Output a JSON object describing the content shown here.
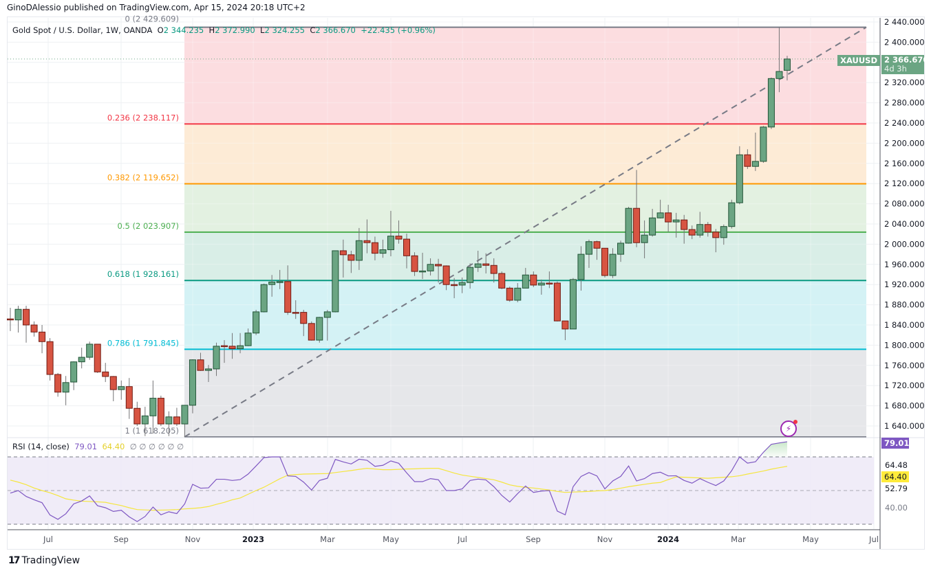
{
  "publisher_line": "GinoDAlessio published on TradingView.com, Apr 15, 2024 20:18 UTC+2",
  "legend": {
    "symbol": "Gold Spot / U.S. Dollar, 1W, OANDA",
    "o_label": "O",
    "o": "2 344.235",
    "h_label": "H",
    "h": "2 372.990",
    "l_label": "L",
    "l": "2 324.255",
    "c_label": "C",
    "c": "2 366.670",
    "change": "+22.435 (+0.96%)"
  },
  "colors": {
    "up": "#6ba583",
    "up_border": "#225437",
    "down": "#d75442",
    "down_border": "#6f1a12",
    "wick": "#737375",
    "rsi": "#7e57c2",
    "rsi_ma": "#f5e63d",
    "price_label": "#6ba583"
  },
  "price_axis": {
    "ticks": [
      "2 440.000",
      "2 400.000",
      "2 360.000",
      "2 320.000",
      "2 280.000",
      "2 240.000",
      "2 200.000",
      "2 160.000",
      "2 120.000",
      "2 080.000",
      "2 040.000",
      "2 000.000",
      "1 960.000",
      "1 920.000",
      "1 880.000",
      "1 840.000",
      "1 800.000",
      "1 760.000",
      "1 720.000",
      "1 680.000",
      "1 640.000"
    ],
    "range": [
      1640,
      2440
    ]
  },
  "time_axis": {
    "ticks": [
      "Jul",
      "Sep",
      "Nov",
      "2023",
      "Mar",
      "May",
      "Jul",
      "Sep",
      "Nov",
      "2024",
      "Mar",
      "May",
      "Jul"
    ]
  },
  "current_price": {
    "symbol": "XAUUSD",
    "value": "2 366.670",
    "countdown": "4d 3h",
    "price": 2366.67
  },
  "fib": {
    "levels": [
      {
        "ratio": 0,
        "label": "0 (2 429.609)",
        "price": 2429.609,
        "line": "#787b86",
        "fill": "#fcd7da"
      },
      {
        "ratio": 0.236,
        "label": "0.236 (2 238.117)",
        "price": 2238.117,
        "line": "#f23645",
        "fill": "#fde8cf"
      },
      {
        "ratio": 0.382,
        "label": "0.382 (2 119.652)",
        "price": 2119.652,
        "line": "#ff9800",
        "fill": "#deefdc"
      },
      {
        "ratio": 0.5,
        "label": "0.5 (2 023.907)",
        "price": 2023.907,
        "line": "#4caf50",
        "fill": "#d2ebe3"
      },
      {
        "ratio": 0.618,
        "label": "0.618 (1 928.161)",
        "price": 1928.161,
        "line": "#089981",
        "fill": "#ccf0f3"
      },
      {
        "ratio": 0.786,
        "label": "0.786 (1 791.845)",
        "price": 1791.845,
        "line": "#00bcd4",
        "fill": "#e2e3e6"
      },
      {
        "ratio": 1,
        "label": "1 (1 618.205)",
        "price": 1618.205,
        "line": "#787b86",
        "fill": ""
      }
    ]
  },
  "rsi": {
    "title": "RSI (14, close)",
    "value": "79.01",
    "ma_value": "64.40",
    "empty_values": "∅ ∅ ∅ ∅ ∅ ∅",
    "axis_labels": [
      "64.48",
      "52.79",
      "40.00"
    ],
    "levels": [
      70,
      50,
      30
    ]
  },
  "chart_data": {
    "type": "candlestick",
    "interval": "1W",
    "ohlc": [
      [
        1852,
        1874,
        1828,
        1851
      ],
      [
        1850,
        1878,
        1825,
        1871
      ],
      [
        1871,
        1878,
        1805,
        1840
      ],
      [
        1840,
        1847,
        1817,
        1826
      ],
      [
        1826,
        1840,
        1784,
        1807
      ],
      [
        1807,
        1814,
        1730,
        1742
      ],
      [
        1742,
        1745,
        1698,
        1707
      ],
      [
        1707,
        1739,
        1681,
        1726
      ],
      [
        1727,
        1768,
        1711,
        1767
      ],
      [
        1767,
        1795,
        1754,
        1776
      ],
      [
        1776,
        1807,
        1771,
        1802
      ],
      [
        1802,
        1802,
        1745,
        1747
      ],
      [
        1747,
        1765,
        1727,
        1738
      ],
      [
        1738,
        1739,
        1689,
        1712
      ],
      [
        1712,
        1730,
        1692,
        1718
      ],
      [
        1718,
        1735,
        1654,
        1675
      ],
      [
        1675,
        1688,
        1640,
        1644
      ],
      [
        1644,
        1678,
        1620,
        1660
      ],
      [
        1660,
        1730,
        1625,
        1695
      ],
      [
        1695,
        1700,
        1640,
        1644
      ],
      [
        1644,
        1669,
        1620,
        1658
      ],
      [
        1658,
        1676,
        1640,
        1644
      ],
      [
        1644,
        1681,
        1618.205,
        1681
      ],
      [
        1681,
        1772,
        1665,
        1771
      ],
      [
        1771,
        1785,
        1749,
        1750
      ],
      [
        1750,
        1761,
        1727,
        1753
      ],
      [
        1753,
        1805,
        1739,
        1798
      ],
      [
        1799,
        1810,
        1765,
        1798
      ],
      [
        1798,
        1824,
        1773,
        1793
      ],
      [
        1793,
        1824,
        1784,
        1799
      ],
      [
        1799,
        1833,
        1798,
        1824
      ],
      [
        1824,
        1870,
        1820,
        1866
      ],
      [
        1866,
        1922,
        1865,
        1920
      ],
      [
        1920,
        1939,
        1896,
        1925
      ],
      [
        1925,
        1949,
        1911,
        1926
      ],
      [
        1926,
        1958,
        1860,
        1865
      ],
      [
        1865,
        1889,
        1852,
        1865
      ],
      [
        1865,
        1870,
        1818,
        1843
      ],
      [
        1843,
        1847,
        1809,
        1810
      ],
      [
        1810,
        1856,
        1805,
        1855
      ],
      [
        1855,
        1870,
        1809,
        1866
      ],
      [
        1866,
        1987,
        1865,
        1987
      ],
      [
        1987,
        2009,
        1934,
        1979
      ],
      [
        1979,
        1987,
        1943,
        1968
      ],
      [
        1968,
        2032,
        1949,
        2007
      ],
      [
        2007,
        2049,
        1982,
        2003
      ],
      [
        2003,
        2015,
        1968,
        1982
      ],
      [
        1982,
        2009,
        1973,
        1989
      ],
      [
        1989,
        2066,
        1976,
        2016
      ],
      [
        2016,
        2047,
        2001,
        2010
      ],
      [
        2010,
        2021,
        1952,
        1977
      ],
      [
        1977,
        1984,
        1937,
        1946
      ],
      [
        1946,
        1983,
        1931,
        1947
      ],
      [
        1947,
        1972,
        1938,
        1960
      ],
      [
        1960,
        1971,
        1924,
        1957
      ],
      [
        1957,
        1958,
        1909,
        1920
      ],
      [
        1920,
        1933,
        1893,
        1919
      ],
      [
        1919,
        1934,
        1903,
        1924
      ],
      [
        1924,
        1962,
        1912,
        1954
      ],
      [
        1954,
        1987,
        1945,
        1961
      ],
      [
        1961,
        1982,
        1942,
        1958
      ],
      [
        1958,
        1972,
        1924,
        1942
      ],
      [
        1942,
        1946,
        1911,
        1913
      ],
      [
        1913,
        1916,
        1886,
        1889
      ],
      [
        1889,
        1923,
        1885,
        1913
      ],
      [
        1913,
        1953,
        1913,
        1939
      ],
      [
        1939,
        1946,
        1915,
        1919
      ],
      [
        1919,
        1930,
        1900,
        1923
      ],
      [
        1923,
        1946,
        1913,
        1923
      ],
      [
        1923,
        1926,
        1847,
        1848
      ],
      [
        1848,
        1848,
        1810,
        1832
      ],
      [
        1832,
        1933,
        1832,
        1930
      ],
      [
        1930,
        1996,
        1908,
        1980
      ],
      [
        1980,
        2009,
        1953,
        2005
      ],
      [
        2005,
        2007,
        1969,
        1992
      ],
      [
        1992,
        1992,
        1934,
        1938
      ],
      [
        1938,
        1992,
        1933,
        1980
      ],
      [
        1980,
        2007,
        1965,
        2002
      ],
      [
        2002,
        2074,
        2001,
        2071
      ],
      [
        2071,
        2147,
        1994,
        2003
      ],
      [
        2003,
        2047,
        1972,
        2018
      ],
      [
        2018,
        2070,
        2015,
        2052
      ],
      [
        2052,
        2088,
        2051,
        2062
      ],
      [
        2062,
        2078,
        2024,
        2044
      ],
      [
        2044,
        2062,
        2013,
        2048
      ],
      [
        2048,
        2058,
        2001,
        2029
      ],
      [
        2029,
        2037,
        2010,
        2018
      ],
      [
        2018,
        2064,
        2013,
        2039
      ],
      [
        2039,
        2044,
        2015,
        2024
      ],
      [
        2024,
        2030,
        1984,
        2013
      ],
      [
        2013,
        2039,
        1999,
        2035
      ],
      [
        2035,
        2088,
        2031,
        2082
      ],
      [
        2082,
        2194,
        2079,
        2177
      ],
      [
        2177,
        2188,
        2149,
        2154
      ],
      [
        2154,
        2221,
        2145,
        2164
      ],
      [
        2164,
        2234,
        2161,
        2232
      ],
      [
        2232,
        2330,
        2228,
        2328
      ],
      [
        2328,
        2429.609,
        2301,
        2342
      ],
      [
        2344.235,
        2372.99,
        2324.255,
        2366.67
      ]
    ],
    "rsi": [
      48.5,
      50.0,
      46.5,
      44.5,
      42.8,
      35.5,
      32.9,
      36.2,
      42.1,
      43.8,
      46.8,
      41.0,
      39.8,
      37.6,
      38.3,
      34.4,
      31.6,
      34.6,
      40.2,
      35.6,
      37.4,
      36.3,
      42.1,
      53.7,
      51.4,
      51.6,
      56.7,
      56.7,
      56.0,
      56.5,
      59.8,
      64.6,
      69.6,
      70.0,
      70.0,
      58.7,
      58.4,
      55.0,
      50.3,
      56.0,
      57.3,
      68.5,
      67.0,
      65.8,
      68.6,
      68.0,
      64.4,
      65.0,
      67.6,
      66.2,
      60.5,
      55.3,
      55.3,
      57.1,
      56.4,
      50.0,
      50.0,
      51.0,
      56.0,
      56.8,
      56.3,
      52.3,
      47.1,
      43.2,
      48.2,
      52.7,
      48.9,
      49.7,
      50.0,
      37.8,
      35.6,
      52.3,
      58.4,
      60.7,
      58.7,
      51.0,
      55.7,
      58.4,
      64.6,
      55.7,
      57.1,
      60.1,
      60.9,
      58.7,
      58.8,
      56.0,
      54.4,
      57.1,
      54.9,
      53.0,
      55.7,
      61.8,
      70.0,
      66.3,
      67.1,
      72.7,
      77.5,
      78.3,
      79.01
    ],
    "rsi_ma": [
      56.2,
      55.0,
      53.5,
      51.5,
      50.0,
      48.7,
      47.0,
      45.1,
      44.3,
      43.7,
      43.5,
      43.3,
      43.0,
      42.0,
      41.1,
      39.8,
      38.7,
      38.5,
      38.3,
      38.4,
      38.5,
      38.7,
      39.1,
      39.4,
      39.8,
      40.5,
      41.8,
      43.0,
      44.5,
      45.6,
      47.8,
      50.0,
      52.0,
      54.5,
      57.0,
      59.1,
      59.5,
      59.8,
      59.9,
      60.0,
      60.1,
      60.7,
      61.3,
      61.9,
      62.6,
      63.2,
      62.8,
      62.4,
      62.4,
      62.6,
      62.8,
      62.9,
      63.1,
      63.2,
      63.2,
      61.8,
      60.4,
      59.2,
      58.5,
      57.8,
      57.1,
      56.4,
      55.0,
      53.4,
      52.5,
      51.9,
      51.5,
      50.9,
      50.3,
      49.5,
      48.9,
      49.1,
      49.3,
      49.5,
      49.8,
      50.0,
      50.6,
      51.4,
      52.3,
      53.0,
      53.7,
      54.4,
      54.8,
      56.5,
      58.1,
      57.9,
      57.7,
      57.5,
      57.3,
      57.6,
      57.9,
      58.2,
      58.8,
      59.8,
      60.7,
      61.6,
      62.7,
      63.6,
      64.4
    ],
    "ylim": [
      1640,
      2440
    ],
    "rsi_ylim": [
      30,
      70
    ]
  },
  "footer": {
    "brand": "TradingView"
  }
}
